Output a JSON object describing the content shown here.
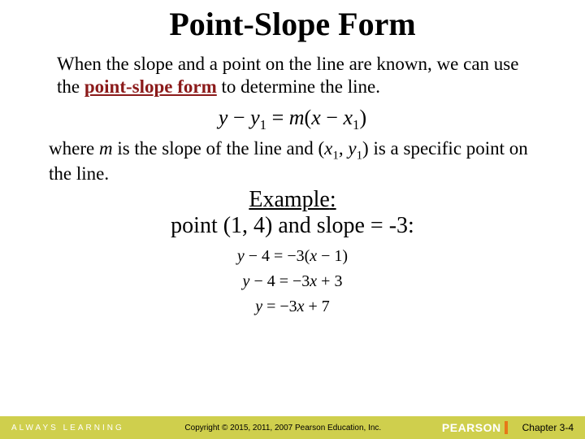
{
  "title": "Point-Slope Form",
  "intro_part1": "When the slope and a point on the line are known, we can use the ",
  "intro_keyword": "point-slope form",
  "intro_part2": " to determine the line.",
  "main_equation": {
    "lhs_y": "y",
    "minus": " − ",
    "y1": "y",
    "sub1": "1",
    "eq": " = ",
    "m": "m",
    "lparen": "(",
    "x": "x",
    "x1": "x",
    "rparen": ")"
  },
  "where_part1": "where ",
  "where_m": "m",
  "where_part2": " is the slope of the line and (",
  "where_x1": "x",
  "where_sub1": "1",
  "where_comma": ", ",
  "where_y1": "y",
  "where_part3": ") is a specific point on the line.",
  "example_label": "Example",
  "example_colon": ":",
  "example_given": "point (1, 4) and slope = -3:",
  "work_line1": "y − 4 = −3(x − 1)",
  "work_line2": "y − 4 = −3x + 3",
  "work_line3": "y = −3x + 7",
  "footer": {
    "always_learning": "ALWAYS LEARNING",
    "copyright": "Copyright © 2015, 2011, 2007 Pearson Education, Inc.",
    "pearson": "PEARSON",
    "chapter": "Chapter 3-4"
  },
  "colors": {
    "keyword": "#8b1a1a",
    "footer_bg": "#cfcf4d",
    "pearson_orange": "#e67817"
  }
}
